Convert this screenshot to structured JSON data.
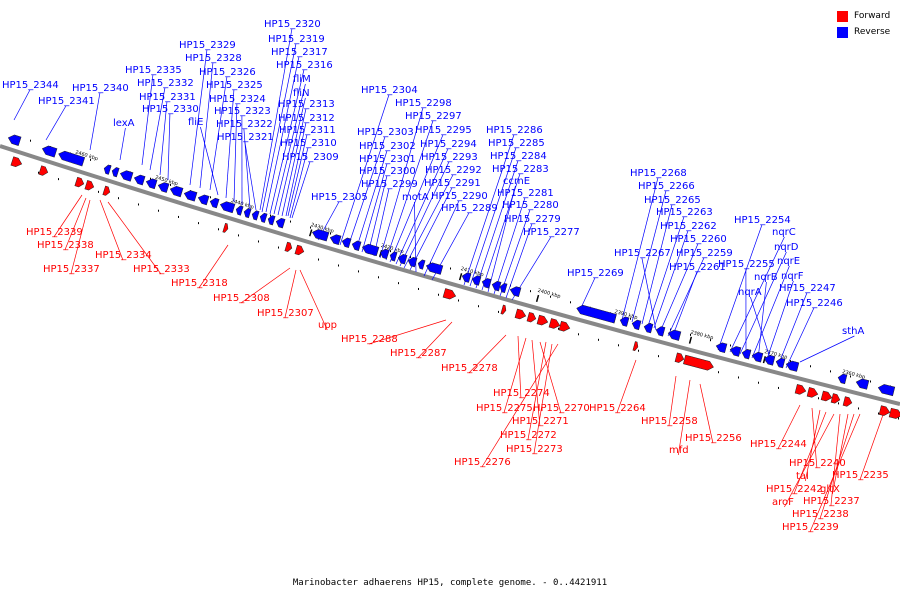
{
  "legend": {
    "forward_label": "Forward",
    "reverse_label": "Reverse",
    "forward_color": "#ff0000",
    "reverse_color": "#0000ff"
  },
  "caption": "Marinobacter adhaerens HP15, complete genome. - 0..4421911",
  "ticks": [
    "2460 kbp",
    "2450 kbp",
    "2440 kbp",
    "2430 kbp",
    "2420 kbp",
    "2410 kbp",
    "2400 kbp",
    "2390 kbp",
    "2380 kbp",
    "2370 kbp",
    "2360 kbp"
  ],
  "reverse_labels": [
    "HP15_2344",
    "HP15_2341",
    "HP15_2340",
    "lexA",
    "HP15_2335",
    "HP15_2332",
    "HP15_2331",
    "HP15_2330",
    "HP15_2329",
    "HP15_2328",
    "HP15_2326",
    "fliE",
    "HP15_2325",
    "HP15_2324",
    "HP15_2323",
    "HP15_2322",
    "HP15_2321",
    "HP15_2320",
    "HP15_2319",
    "HP15_2317",
    "HP15_2316",
    "fliM",
    "fliN",
    "HP15_2313",
    "HP15_2312",
    "HP15_2311",
    "HP15_2310",
    "HP15_2309",
    "HP15_2305",
    "HP15_2304",
    "HP15_2303",
    "HP15_2302",
    "HP15_2301",
    "HP15_2300",
    "HP15_2299",
    "HP15_2298",
    "HP15_2297",
    "HP15_2295",
    "HP15_2294",
    "HP15_2293",
    "HP15_2292",
    "HP15_2291",
    "motA",
    "HP15_2290",
    "HP15_2289",
    "HP15_2286",
    "HP15_2285",
    "HP15_2284",
    "HP15_2283",
    "ccmE",
    "HP15_2281",
    "HP15_2280",
    "HP15_2279",
    "HP15_2277",
    "HP15_2269",
    "HP15_2268",
    "HP15_2266",
    "HP15_2265",
    "HP15_2263",
    "HP15_2262",
    "HP15_2267",
    "HP15_2260",
    "HP15_2259",
    "HP15_2261",
    "HP15_2254",
    "nqrC",
    "nqrD",
    "HP15_2255",
    "nqrE",
    "nqrB",
    "nqrF",
    "nqrA",
    "HP15_2247",
    "HP15_2246",
    "sthA"
  ],
  "forward_labels": [
    "HP15_2339",
    "HP15_2338",
    "HP15_2337",
    "HP15_2334",
    "HP15_2333",
    "HP15_2318",
    "HP15_2308",
    "HP15_2307",
    "upp",
    "HP15_2288",
    "HP15_2287",
    "HP15_2278",
    "HP15_2274",
    "HP15_2275",
    "HP15_2271",
    "HP15_2270",
    "HP15_2272",
    "HP15_2273",
    "HP15_2276",
    "HP15_2264",
    "HP15_2258",
    "mfd",
    "HP15_2256",
    "HP15_2244",
    "HP15_2240",
    "tal",
    "HP15_2242",
    "aroF",
    "HP15_2237",
    "HP15_2235",
    "gltX",
    "HP15_2238",
    "HP15_2239"
  ]
}
